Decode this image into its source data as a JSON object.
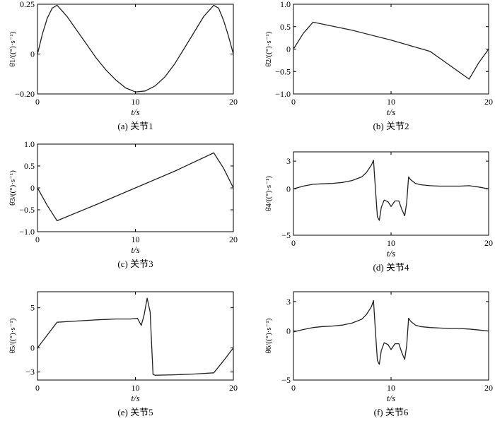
{
  "chart_data": [
    {
      "type": "line",
      "caption": "(a) 关节1",
      "xlabel": "t/s",
      "ylabel": "θ̇1/((°)·s⁻¹)",
      "xlim": [
        0,
        20
      ],
      "ylim": [
        -0.2,
        0.25
      ],
      "xticks": [
        0,
        10,
        20
      ],
      "yticks": [
        -0.2,
        0,
        0.25
      ],
      "ytick_labels": [
        "−0.20",
        "0",
        "0.25"
      ],
      "x": [
        0,
        0.5,
        1,
        1.5,
        2,
        3,
        4,
        5,
        6,
        7,
        8,
        9,
        10,
        11,
        12,
        13,
        14,
        15,
        16,
        17,
        18,
        18.5,
        19,
        19.5,
        20
      ],
      "values": [
        0.0,
        0.1,
        0.18,
        0.23,
        0.245,
        0.19,
        0.12,
        0.05,
        -0.02,
        -0.08,
        -0.13,
        -0.17,
        -0.19,
        -0.185,
        -0.16,
        -0.115,
        -0.05,
        0.03,
        0.11,
        0.19,
        0.245,
        0.23,
        0.17,
        0.09,
        0.0
      ],
      "grid": false
    },
    {
      "type": "line",
      "caption": "(b) 关节2",
      "xlabel": "t/s",
      "ylabel": "θ̇2/((°)·s⁻¹)",
      "xlim": [
        0,
        20
      ],
      "ylim": [
        -1.0,
        1.0
      ],
      "xticks": [
        0,
        10,
        20
      ],
      "yticks": [
        -1.0,
        -0.5,
        0,
        0.5,
        1.0
      ],
      "ytick_labels": [
        "−1.0",
        "−0.5",
        "0",
        "0.5",
        "1.0"
      ],
      "x": [
        0,
        1,
        2,
        6,
        10,
        14,
        18,
        19,
        20
      ],
      "values": [
        0.0,
        0.35,
        0.6,
        0.42,
        0.2,
        -0.05,
        -0.67,
        -0.3,
        0.0
      ],
      "grid": false
    },
    {
      "type": "line",
      "caption": "(c) 关节3",
      "xlabel": "t/s",
      "ylabel": "θ̇3/((°)·s⁻¹)",
      "xlim": [
        0,
        20
      ],
      "ylim": [
        -1.0,
        1.0
      ],
      "xticks": [
        0,
        10,
        20
      ],
      "yticks": [
        -1.0,
        -0.5,
        0,
        0.5,
        1.0
      ],
      "ytick_labels": [
        "−1.0",
        "−0.5",
        "0",
        "0.5",
        "1.0"
      ],
      "x": [
        0,
        1,
        2,
        6,
        10,
        14,
        18,
        19,
        20
      ],
      "values": [
        0.0,
        -0.4,
        -0.75,
        -0.38,
        0.0,
        0.38,
        0.8,
        0.45,
        0.0
      ],
      "grid": false
    },
    {
      "type": "line",
      "caption": "(d) 关节4",
      "xlabel": "t/s",
      "ylabel": "θ̇4/((°)·s⁻¹)",
      "xlim": [
        0,
        20
      ],
      "ylim": [
        -5,
        4
      ],
      "xticks": [
        0,
        10,
        20
      ],
      "yticks": [
        -5,
        0,
        3
      ],
      "ytick_labels": [
        "−5",
        "0",
        "3"
      ],
      "x": [
        0,
        1,
        2,
        3,
        4,
        5,
        6,
        7,
        7.5,
        8,
        8.2,
        8.4,
        8.6,
        8.8,
        9.0,
        9.3,
        9.7,
        10.0,
        10.4,
        10.8,
        11.1,
        11.4,
        11.6,
        11.8,
        12.0,
        12.5,
        13,
        14,
        15,
        16,
        17,
        18,
        19,
        20
      ],
      "values": [
        0.0,
        0.3,
        0.5,
        0.55,
        0.6,
        0.7,
        0.9,
        1.3,
        1.8,
        2.6,
        3.1,
        0.0,
        -3.0,
        -3.4,
        -2.0,
        -1.2,
        -1.4,
        -1.9,
        -1.3,
        -1.3,
        -2.2,
        -2.9,
        -1.5,
        1.3,
        1.0,
        0.6,
        0.45,
        0.35,
        0.3,
        0.3,
        0.3,
        0.35,
        0.2,
        0.0
      ],
      "grid": false
    },
    {
      "type": "line",
      "caption": "(e) 关节5",
      "xlabel": "t/s",
      "ylabel": "θ̇5/((°)·s⁻¹)",
      "xlim": [
        0,
        20
      ],
      "ylim": [
        -4,
        7
      ],
      "xticks": [
        0,
        10,
        20
      ],
      "yticks": [
        -3,
        0,
        5
      ],
      "ytick_labels": [
        "−3",
        "0",
        "5"
      ],
      "x": [
        0,
        1,
        2,
        4,
        6,
        8,
        9.5,
        10.2,
        10.6,
        10.9,
        11.2,
        11.5,
        11.8,
        12.0,
        14,
        16,
        18,
        19,
        20
      ],
      "values": [
        0.0,
        1.6,
        3.2,
        3.35,
        3.5,
        3.6,
        3.6,
        3.7,
        2.8,
        4.2,
        6.2,
        4.5,
        -3.3,
        -3.4,
        -3.35,
        -3.25,
        -3.1,
        -1.6,
        0.0
      ],
      "grid": false
    },
    {
      "type": "line",
      "caption": "(f) 关节6",
      "xlabel": "t/s",
      "ylabel": "θ̇6/((°)·s⁻¹)",
      "xlim": [
        0,
        20
      ],
      "ylim": [
        -5,
        4
      ],
      "xticks": [
        0,
        10,
        20
      ],
      "yticks": [
        -5,
        0,
        3
      ],
      "ytick_labels": [
        "−5",
        "0",
        "3"
      ],
      "x": [
        0,
        1,
        2,
        3,
        4,
        5,
        6,
        7,
        7.5,
        8,
        8.2,
        8.4,
        8.6,
        8.8,
        9.0,
        9.3,
        9.7,
        10.0,
        10.4,
        10.8,
        11.1,
        11.4,
        11.6,
        11.8,
        12.0,
        12.5,
        13,
        14,
        15,
        16,
        17,
        18,
        19,
        20
      ],
      "values": [
        -0.1,
        0.15,
        0.35,
        0.45,
        0.5,
        0.6,
        0.8,
        1.2,
        1.7,
        2.5,
        3.1,
        0.0,
        -3.0,
        -3.4,
        -2.0,
        -1.2,
        -1.4,
        -1.9,
        -1.3,
        -1.3,
        -2.2,
        -2.9,
        -1.5,
        1.3,
        1.0,
        0.6,
        0.45,
        0.35,
        0.3,
        0.25,
        0.25,
        0.2,
        0.1,
        0.0
      ],
      "grid": false
    }
  ]
}
